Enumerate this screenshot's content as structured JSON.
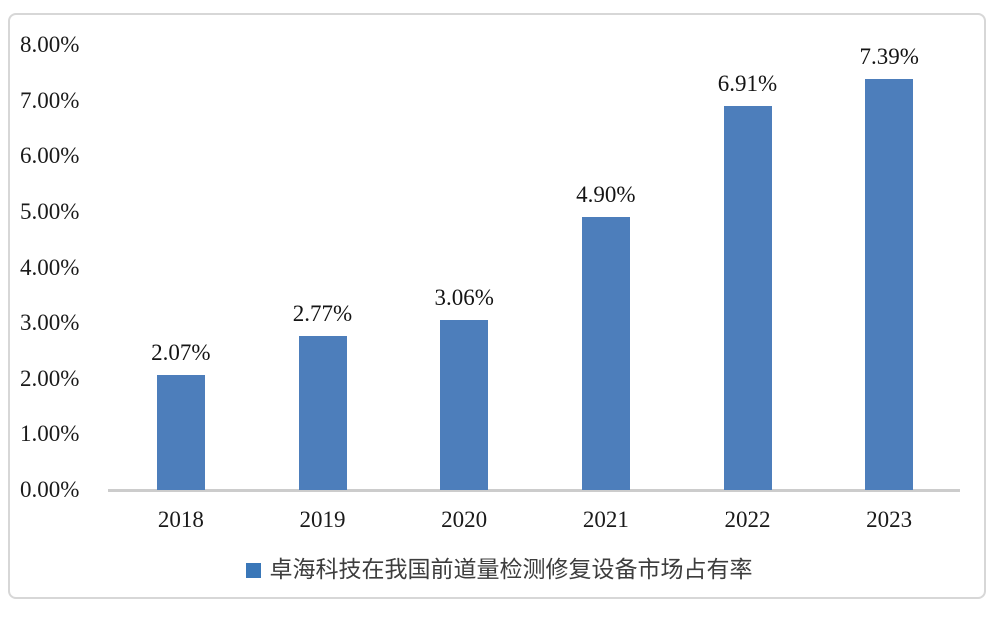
{
  "chart_data": {
    "type": "bar",
    "title": "",
    "xlabel": "",
    "ylabel": "",
    "categories": [
      "2018",
      "2019",
      "2020",
      "2021",
      "2022",
      "2023"
    ],
    "series": [
      {
        "name": "卓海科技在我国前道量检测修复设备市场占有率",
        "values": [
          2.07,
          2.77,
          3.06,
          4.9,
          6.91,
          7.39
        ]
      }
    ],
    "data_labels": [
      "2.07%",
      "2.77%",
      "3.06%",
      "4.90%",
      "6.91%",
      "7.39%"
    ],
    "y_ticks": [
      "8.00%",
      "7.00%",
      "6.00%",
      "5.00%",
      "4.00%",
      "3.00%",
      "2.00%",
      "1.00%",
      "0.00%"
    ],
    "y_tick_values": [
      8,
      7,
      6,
      5,
      4,
      3,
      2,
      1,
      0
    ],
    "ylim": [
      0,
      8
    ],
    "grid": false,
    "legend_position": "bottom",
    "legend_label": "卓海科技在我国前道量检测修复设备市场占有率",
    "colors": {
      "bar": "#4d7ebb",
      "legend_marker": "#3a77b8",
      "axis_line": "#cccccc",
      "frame_border": "#d7d7d7",
      "background": "#ffffff"
    }
  }
}
